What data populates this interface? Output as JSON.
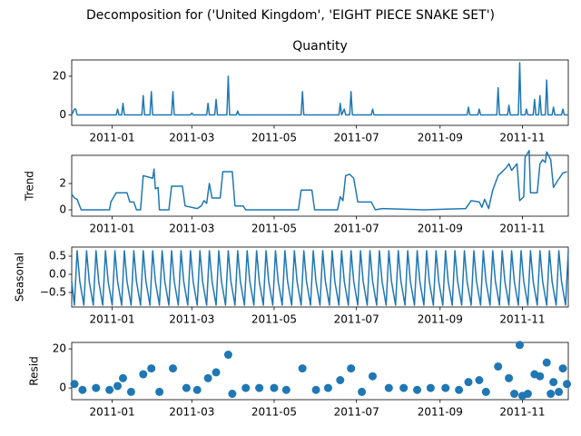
{
  "suptitle": "Decomposition for ('United Kingdom', 'EIGHT PIECE SNAKE  SET')",
  "chart_data": [
    {
      "type": "line",
      "title": "Quantity",
      "color": "#1f77b4",
      "xlim": [
        "2010-12-02",
        "2011-12-05"
      ],
      "xticks": [
        "2011-01",
        "2011-03",
        "2011-05",
        "2011-07",
        "2011-09",
        "2011-11"
      ],
      "ylim": [
        -5.4,
        28.4
      ],
      "yticks": [
        0,
        20
      ],
      "x": [
        "2010-12-02",
        "2010-12-04",
        "2010-12-05",
        "2010-12-06",
        "2011-01-04",
        "2011-01-05",
        "2011-01-06",
        "2011-01-08",
        "2011-01-09",
        "2011-01-10",
        "2011-01-23",
        "2011-01-24",
        "2011-01-25",
        "2011-01-29",
        "2011-01-30",
        "2011-01-31",
        "2011-02-14",
        "2011-02-15",
        "2011-02-16",
        "2011-02-28",
        "2011-03-01",
        "2011-03-02",
        "2011-03-12",
        "2011-03-13",
        "2011-03-14",
        "2011-03-18",
        "2011-03-19",
        "2011-03-20",
        "2011-03-27",
        "2011-03-28",
        "2011-03-29",
        "2011-04-03",
        "2011-04-04",
        "2011-04-05",
        "2011-05-21",
        "2011-05-22",
        "2011-05-23",
        "2011-06-18",
        "2011-06-19",
        "2011-06-20",
        "2011-06-22",
        "2011-06-23",
        "2011-06-26",
        "2011-06-27",
        "2011-06-28",
        "2011-07-12",
        "2011-07-13",
        "2011-07-14",
        "2011-09-21",
        "2011-09-22",
        "2011-09-23",
        "2011-09-29",
        "2011-09-30",
        "2011-10-01",
        "2011-10-13",
        "2011-10-14",
        "2011-10-15",
        "2011-10-21",
        "2011-10-22",
        "2011-10-23",
        "2011-10-29",
        "2011-10-30",
        "2011-10-31",
        "2011-11-03",
        "2011-11-04",
        "2011-11-05",
        "2011-11-09",
        "2011-11-10",
        "2011-11-11",
        "2011-11-13",
        "2011-11-14",
        "2011-11-15",
        "2011-11-18",
        "2011-11-19",
        "2011-11-20",
        "2011-11-23",
        "2011-11-24",
        "2011-11-25",
        "2011-11-30",
        "2011-12-01",
        "2011-12-02",
        "2011-12-05"
      ],
      "values": [
        0,
        3,
        3,
        0,
        0,
        3,
        0,
        0,
        6,
        0,
        0,
        10,
        0,
        0,
        12,
        0,
        0,
        12,
        0,
        0,
        1,
        0,
        0,
        6,
        0,
        0,
        8,
        0,
        0,
        20,
        0,
        0,
        2,
        0,
        0,
        12,
        0,
        0,
        6,
        0,
        3,
        0,
        0,
        12,
        0,
        0,
        3,
        0,
        0,
        4,
        0,
        0,
        3,
        0,
        0,
        14,
        0,
        0,
        5,
        0,
        0,
        27,
        0,
        0,
        3,
        0,
        0,
        8,
        0,
        0,
        10,
        0,
        0,
        18,
        0,
        0,
        4,
        0,
        0,
        3,
        0,
        0
      ]
    },
    {
      "type": "line",
      "ylabel": "Trend",
      "color": "#1f77b4",
      "xlim": [
        "2010-12-02",
        "2011-12-05"
      ],
      "xticks": [
        "2011-01",
        "2011-03",
        "2011-05",
        "2011-07",
        "2011-09",
        "2011-11"
      ],
      "ylim": [
        -0.48,
        4.14
      ],
      "yticks": [
        0,
        2
      ],
      "x": [
        "2010-12-02",
        "2010-12-04",
        "2010-12-06",
        "2010-12-09",
        "2010-12-30",
        "2010-12-31",
        "2011-01-04",
        "2011-01-12",
        "2011-01-14",
        "2011-01-17",
        "2011-01-19",
        "2011-01-22",
        "2011-01-24",
        "2011-01-31",
        "2011-02-01",
        "2011-02-02",
        "2011-02-04",
        "2011-02-05",
        "2011-02-12",
        "2011-02-14",
        "2011-02-22",
        "2011-02-24",
        "2011-03-05",
        "2011-03-08",
        "2011-03-10",
        "2011-03-12",
        "2011-03-14",
        "2011-03-16",
        "2011-03-22",
        "2011-03-24",
        "2011-03-31",
        "2011-04-02",
        "2011-04-08",
        "2011-04-10",
        "2011-05-19",
        "2011-05-21",
        "2011-05-29",
        "2011-05-31",
        "2011-06-17",
        "2011-06-19",
        "2011-06-21",
        "2011-06-23",
        "2011-06-26",
        "2011-06-29",
        "2011-07-02",
        "2011-07-12",
        "2011-07-15",
        "2011-07-20",
        "2011-08-20",
        "2011-09-20",
        "2011-09-24",
        "2011-09-30",
        "2011-10-02",
        "2011-10-04",
        "2011-10-07",
        "2011-10-10",
        "2011-10-14",
        "2011-10-20",
        "2011-10-22",
        "2011-10-24",
        "2011-10-28",
        "2011-10-30",
        "2011-11-02",
        "2011-11-03",
        "2011-11-06",
        "2011-11-07",
        "2011-11-12",
        "2011-11-14",
        "2011-11-16",
        "2011-11-18",
        "2011-11-19",
        "2011-11-22",
        "2011-11-24",
        "2011-11-27",
        "2011-12-01",
        "2011-12-04"
      ],
      "values": [
        1.2,
        0.9,
        0.8,
        0,
        0,
        0.6,
        1.3,
        1.3,
        0.6,
        0.6,
        0,
        0,
        2.6,
        2.4,
        3.1,
        1.6,
        1.7,
        0,
        0,
        1.8,
        1.8,
        0.3,
        0.1,
        0.3,
        0.7,
        0.5,
        2.0,
        0.9,
        0.9,
        2.9,
        2.9,
        0.3,
        0.3,
        0,
        0,
        1.5,
        1.5,
        0,
        0,
        1.0,
        0.7,
        2.6,
        2.7,
        2.4,
        0.6,
        0.6,
        0,
        0.1,
        0,
        0.1,
        0.7,
        0.6,
        0.2,
        0.8,
        0.1,
        1.5,
        2.6,
        3.2,
        3.5,
        3.0,
        3.5,
        0.7,
        1.0,
        4.0,
        4.5,
        1.3,
        1.3,
        3.5,
        3.8,
        3.6,
        4.4,
        3.8,
        1.7,
        2.2,
        2.8,
        2.9
      ]
    },
    {
      "type": "line",
      "ylabel": "Seasonal",
      "color": "#1f77b4",
      "xlim": [
        "2010-12-02",
        "2011-12-05"
      ],
      "xticks": [
        "2011-01",
        "2011-03",
        "2011-05",
        "2011-07",
        "2011-09",
        "2011-11"
      ],
      "ylim": [
        -0.9,
        0.75
      ],
      "yticks": [
        {
          "value": -0.5,
          "label": "−0.5"
        },
        {
          "value": 0,
          "label": "0.0"
        },
        {
          "value": 0.5,
          "label": "0.5"
        }
      ],
      "x": [
        "2010-12-02",
        "2010-12-04",
        "2010-12-06",
        "2010-12-08",
        "2010-12-11",
        "2010-12-13",
        "2010-12-15",
        "2010-12-18",
        "2010-12-20",
        "2010-12-22",
        "2010-12-25",
        "2010-12-27",
        "2010-12-29",
        "2011-01-01",
        "2011-01-03",
        "2011-01-05",
        "2011-01-08",
        "2011-01-10",
        "2011-01-12",
        "2011-01-15",
        "2011-01-17",
        "2011-01-19",
        "2011-01-22",
        "2011-01-24",
        "2011-01-26",
        "2011-01-29",
        "2011-01-31",
        "2011-02-02",
        "2011-02-05",
        "2011-02-07",
        "2011-02-09",
        "2011-02-12",
        "2011-02-14",
        "2011-02-16",
        "2011-02-19",
        "2011-02-21",
        "2011-02-23",
        "2011-02-26",
        "2011-02-28",
        "2011-03-02",
        "2011-03-05",
        "2011-03-07",
        "2011-03-09",
        "2011-03-12",
        "2011-03-14",
        "2011-03-16",
        "2011-03-19",
        "2011-03-21",
        "2011-03-23",
        "2011-03-26",
        "2011-03-28",
        "2011-03-30",
        "2011-04-02",
        "2011-04-04",
        "2011-04-06",
        "2011-04-09",
        "2011-04-11",
        "2011-04-13",
        "2011-04-16",
        "2011-04-18",
        "2011-04-20",
        "2011-04-23",
        "2011-04-25",
        "2011-04-27",
        "2011-04-30",
        "2011-05-02",
        "2011-05-04",
        "2011-05-07",
        "2011-05-09",
        "2011-05-11",
        "2011-05-14",
        "2011-05-16",
        "2011-05-18",
        "2011-05-21",
        "2011-05-23",
        "2011-05-25",
        "2011-05-28",
        "2011-05-30",
        "2011-06-01",
        "2011-06-04",
        "2011-06-06",
        "2011-06-08",
        "2011-06-11",
        "2011-06-13",
        "2011-06-15",
        "2011-06-18",
        "2011-06-20",
        "2011-06-22",
        "2011-06-25",
        "2011-06-27",
        "2011-06-29",
        "2011-07-02",
        "2011-07-04",
        "2011-07-06",
        "2011-07-09",
        "2011-07-11",
        "2011-07-13",
        "2011-07-16",
        "2011-07-18",
        "2011-07-20",
        "2011-07-23",
        "2011-07-25",
        "2011-07-27",
        "2011-07-30",
        "2011-08-01",
        "2011-08-03",
        "2011-08-06",
        "2011-08-08",
        "2011-08-10",
        "2011-08-13",
        "2011-08-15",
        "2011-08-17",
        "2011-08-20",
        "2011-08-22",
        "2011-08-24",
        "2011-08-27",
        "2011-08-29",
        "2011-08-31",
        "2011-09-03",
        "2011-09-05",
        "2011-09-07",
        "2011-09-10",
        "2011-09-12",
        "2011-09-14",
        "2011-09-17",
        "2011-09-19",
        "2011-09-21",
        "2011-09-24",
        "2011-09-26",
        "2011-09-28",
        "2011-10-01",
        "2011-10-03",
        "2011-10-05",
        "2011-10-08",
        "2011-10-10",
        "2011-10-12",
        "2011-10-15",
        "2011-10-17",
        "2011-10-19",
        "2011-10-22",
        "2011-10-24",
        "2011-10-26",
        "2011-10-29",
        "2011-10-31",
        "2011-11-02",
        "2011-11-05",
        "2011-11-07",
        "2011-11-09",
        "2011-11-12",
        "2011-11-14",
        "2011-11-16",
        "2011-11-19",
        "2011-11-21",
        "2011-11-23",
        "2011-11-26",
        "2011-11-28",
        "2011-11-30",
        "2011-12-03",
        "2011-12-05"
      ],
      "values": [
        -0.2,
        -0.85,
        0.65,
        -0.2,
        -0.85,
        0.65,
        -0.2,
        -0.85,
        0.65,
        -0.2,
        -0.85,
        0.65,
        -0.2,
        -0.85,
        0.65,
        -0.2,
        -0.85,
        0.65,
        -0.2,
        -0.85,
        0.65,
        -0.2,
        -0.85,
        0.65,
        -0.2,
        -0.85,
        0.65,
        -0.2,
        -0.85,
        0.65,
        -0.2,
        -0.85,
        0.65,
        -0.2,
        -0.85,
        0.65,
        -0.2,
        -0.85,
        0.65,
        -0.2,
        -0.85,
        0.65,
        -0.2,
        -0.85,
        0.65,
        -0.2,
        -0.85,
        0.65,
        -0.2,
        -0.85,
        0.65,
        -0.2,
        -0.85,
        0.65,
        -0.2,
        -0.85,
        0.65,
        -0.2,
        -0.85,
        0.65,
        -0.2,
        -0.85,
        0.65,
        -0.2,
        -0.85,
        0.65,
        -0.2,
        -0.85,
        0.65,
        -0.2,
        -0.85,
        0.65,
        -0.2,
        -0.85,
        0.65,
        -0.2,
        -0.85,
        0.65,
        -0.2,
        -0.85,
        0.65,
        -0.2,
        -0.85,
        0.65,
        -0.2,
        -0.85,
        0.65,
        -0.2,
        -0.85,
        0.65,
        -0.2,
        -0.85,
        0.65,
        -0.2,
        -0.85,
        0.65,
        -0.2,
        -0.85,
        0.65,
        -0.2,
        -0.85,
        0.65,
        -0.2,
        -0.85,
        0.65,
        -0.2,
        -0.85,
        0.65,
        -0.2,
        -0.85,
        0.65,
        -0.2,
        -0.85,
        0.65,
        -0.2,
        -0.85,
        0.65,
        -0.2,
        -0.85,
        0.65,
        -0.2,
        -0.85,
        0.65,
        -0.2,
        -0.85,
        0.65,
        -0.2,
        -0.85,
        0.65,
        -0.2,
        -0.85,
        0.65,
        -0.2,
        -0.85,
        0.65,
        -0.2,
        -0.85,
        0.65,
        -0.2,
        -0.85,
        0.65,
        -0.2,
        -0.85,
        0.65,
        -0.2,
        -0.85,
        0.65,
        -0.2,
        -0.85,
        0.65,
        -0.2,
        -0.85,
        0.65,
        -0.2,
        -0.85,
        0.65,
        -0.2,
        -0.85,
        0.65
      ]
    },
    {
      "type": "scatter",
      "ylabel": "Resid",
      "color": "#1f77b4",
      "xlim": [
        "2010-12-02",
        "2011-12-05"
      ],
      "xticks": [
        "2011-01",
        "2011-03",
        "2011-05",
        "2011-07",
        "2011-09",
        "2011-11"
      ],
      "ylim": [
        -6,
        23.3
      ],
      "yticks": [
        0,
        20
      ],
      "x": [
        "2010-12-04",
        "2010-12-10",
        "2010-12-20",
        "2010-12-30",
        "2011-01-05",
        "2011-01-09",
        "2011-01-15",
        "2011-01-24",
        "2011-01-30",
        "2011-02-05",
        "2011-02-15",
        "2011-02-25",
        "2011-03-05",
        "2011-03-13",
        "2011-03-19",
        "2011-03-28",
        "2011-03-31",
        "2011-04-10",
        "2011-04-20",
        "2011-05-01",
        "2011-05-10",
        "2011-05-22",
        "2011-06-01",
        "2011-06-10",
        "2011-06-19",
        "2011-06-27",
        "2011-07-05",
        "2011-07-13",
        "2011-07-25",
        "2011-08-05",
        "2011-08-15",
        "2011-08-25",
        "2011-09-05",
        "2011-09-15",
        "2011-09-22",
        "2011-09-30",
        "2011-10-05",
        "2011-10-14",
        "2011-10-22",
        "2011-10-26",
        "2011-10-30",
        "2011-11-01",
        "2011-11-05",
        "2011-11-10",
        "2011-11-14",
        "2011-11-19",
        "2011-11-22",
        "2011-11-24",
        "2011-11-28",
        "2011-12-01",
        "2011-12-04"
      ],
      "values": [
        2,
        -1,
        0,
        -1,
        1,
        5,
        -2,
        7,
        10,
        -2,
        10,
        0,
        -1,
        5,
        8,
        17,
        -3,
        0,
        0,
        0,
        -1,
        10,
        -1,
        0,
        4,
        10,
        -2,
        6,
        0,
        0,
        -1,
        0,
        0,
        -1,
        3,
        4,
        -2,
        11,
        5,
        -3,
        22,
        -4,
        -3,
        7,
        6,
        13,
        -3,
        3,
        -2,
        10,
        2
      ]
    }
  ]
}
